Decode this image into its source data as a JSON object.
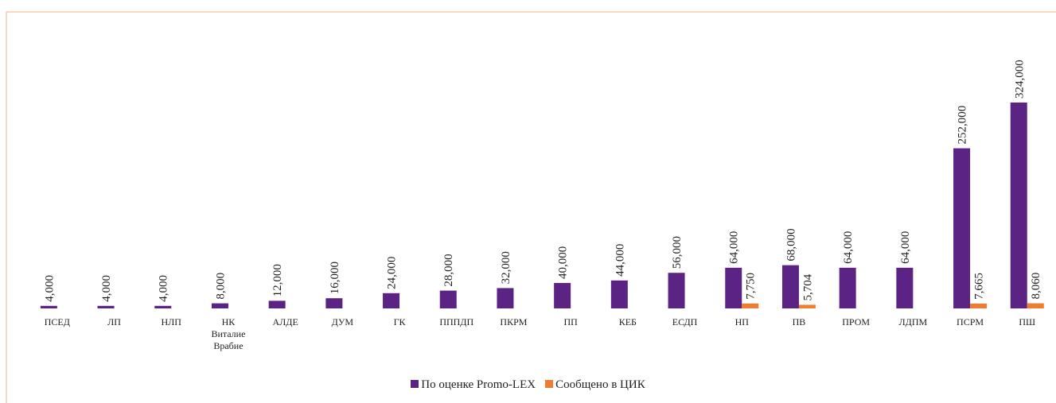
{
  "chart_data": {
    "type": "bar",
    "categories": [
      "ПСЕД",
      "ЛП",
      "НЛП",
      "НК Виталие Врабие",
      "АЛДЕ",
      "ДУМ",
      "ГК",
      "ПППДП",
      "ПКРМ",
      "ПП",
      "КЕБ",
      "ЕСДП",
      "НП",
      "ПВ",
      "ПРОМ",
      "ЛДПМ",
      "ПСРМ",
      "ПШ"
    ],
    "series": [
      {
        "name": "По оценке Promo-LEX",
        "color": "#5b2383",
        "values": [
          4000,
          4000,
          4000,
          8000,
          12000,
          16000,
          24000,
          28000,
          32000,
          40000,
          44000,
          56000,
          64000,
          68000,
          64000,
          64000,
          252000,
          324000
        ],
        "value_labels": [
          "4,000",
          "4,000",
          "4,000",
          "8,000",
          "12,000",
          "16,000",
          "24,000",
          "28,000",
          "32,000",
          "40,000",
          "44,000",
          "56,000",
          "64,000",
          "68,000",
          "64,000",
          "64,000",
          "252,000",
          "324,000"
        ]
      },
      {
        "name": "Сообщено в ЦИК",
        "color": "#ed7d31",
        "values": [
          null,
          null,
          null,
          null,
          null,
          null,
          null,
          null,
          null,
          null,
          null,
          null,
          7750,
          5704,
          null,
          null,
          7665,
          8060
        ],
        "value_labels": [
          null,
          null,
          null,
          null,
          null,
          null,
          null,
          null,
          null,
          null,
          null,
          null,
          "7,750",
          "5,704",
          null,
          null,
          "7,665",
          "8,060"
        ]
      }
    ]
  }
}
